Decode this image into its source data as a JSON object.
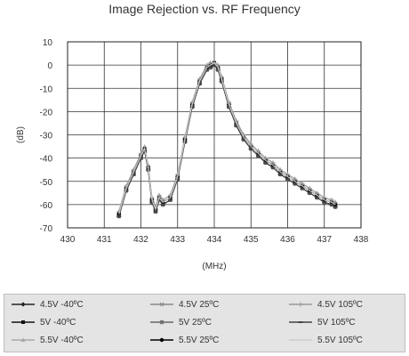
{
  "chart_data": {
    "type": "line",
    "title": "Image Rejection vs. RF Frequency",
    "xlabel": "(MHz)",
    "ylabel": "(dB)",
    "xlim": [
      430,
      438
    ],
    "ylim": [
      -70,
      10
    ],
    "xticks": [
      "430",
      "431",
      "432",
      "433",
      "434",
      "435",
      "436",
      "437",
      "438"
    ],
    "yticks": [
      "10",
      "0",
      "-10",
      "-20",
      "-30",
      "-40",
      "-50",
      "-60",
      "-70"
    ],
    "grid": true,
    "legend_position": "bottom",
    "x": [
      431.4,
      431.6,
      431.8,
      432.0,
      432.1,
      432.2,
      432.3,
      432.4,
      432.5,
      432.6,
      432.8,
      433.0,
      433.2,
      433.4,
      433.6,
      433.8,
      433.9,
      434.0,
      434.1,
      434.2,
      434.4,
      434.6,
      434.8,
      435.0,
      435.2,
      435.4,
      435.6,
      435.8,
      436.0,
      436.2,
      436.4,
      436.6,
      436.8,
      437.0,
      437.2,
      437.3
    ],
    "series": [
      {
        "name": "4.5V -40ºC",
        "color": "#222222",
        "marker": "diamond",
        "values": [
          -64,
          -53,
          -46,
          -39,
          -36,
          -44,
          -58,
          -62,
          -57,
          -59,
          -57,
          -48,
          -32,
          -17,
          -7,
          -1,
          0,
          1,
          -1,
          -6,
          -17,
          -25,
          -31,
          -35,
          -38,
          -41,
          -43,
          -46,
          -48,
          -50,
          -52,
          -54,
          -56,
          -58,
          -59,
          -60
        ]
      },
      {
        "name": "5V -40ºC",
        "color": "#111111",
        "marker": "square",
        "values": [
          -65,
          -54,
          -47,
          -40,
          -37,
          -45,
          -59,
          -63,
          -58,
          -60,
          -58,
          -49,
          -33,
          -18,
          -8,
          -2,
          -1,
          0,
          -2,
          -7,
          -18,
          -26,
          -32,
          -36,
          -39,
          -42,
          -44,
          -47,
          -49,
          -51,
          -53,
          -55,
          -57,
          -59,
          -60,
          -61
        ]
      },
      {
        "name": "5.5V -40ºC",
        "color": "#aaaaaa",
        "marker": "triangle",
        "values": [
          -63,
          -52,
          -45,
          -38,
          -35,
          -43,
          -57,
          -61,
          -56,
          -58,
          -56,
          -47,
          -31,
          -16,
          -6,
          0,
          1,
          1,
          0,
          -5,
          -16,
          -24,
          -30,
          -34,
          -37,
          -40,
          -42,
          -45,
          -47,
          -49,
          -51,
          -53,
          -55,
          -57,
          -58,
          -59
        ]
      },
      {
        "name": "4.5V 25ºC",
        "color": "#888888",
        "marker": "x",
        "values": [
          -64,
          -53,
          -46,
          -39,
          -36,
          -44,
          -58,
          -62,
          -57,
          -59,
          -57,
          -48,
          -32,
          -17,
          -7,
          -1,
          0,
          1,
          -1,
          -6,
          -17,
          -25,
          -31,
          -35,
          -38,
          -41,
          -43,
          -46,
          -48,
          -50,
          -52,
          -54,
          -56,
          -58,
          -59,
          -60
        ]
      },
      {
        "name": "5V 25ºC",
        "color": "#666666",
        "marker": "star",
        "values": [
          -65,
          -54,
          -47,
          -40,
          -37,
          -45,
          -59,
          -63,
          -58,
          -60,
          -58,
          -49,
          -33,
          -18,
          -8,
          -2,
          -1,
          0,
          -2,
          -7,
          -18,
          -26,
          -32,
          -36,
          -39,
          -42,
          -44,
          -47,
          -49,
          -51,
          -53,
          -55,
          -57,
          -59,
          -60,
          -61
        ]
      },
      {
        "name": "5.5V 25ºC",
        "color": "#000000",
        "marker": "circle",
        "values": [
          -64,
          -53,
          -46,
          -39,
          -36,
          -44,
          -58,
          -62,
          -57,
          -59,
          -57,
          -48,
          -32,
          -17,
          -7,
          -1,
          0,
          1,
          -1,
          -6,
          -17,
          -25,
          -31,
          -35,
          -38,
          -41,
          -43,
          -46,
          -48,
          -50,
          -52,
          -54,
          -56,
          -58,
          -59,
          -60
        ]
      },
      {
        "name": "4.5V 105ºC",
        "color": "#999999",
        "marker": "plus",
        "values": [
          -63,
          -52,
          -45,
          -38,
          -36,
          -44,
          -57,
          -61,
          -56,
          -58,
          -56,
          -47,
          -31,
          -16,
          -6,
          0,
          1,
          1,
          0,
          -5,
          -16,
          -24,
          -30,
          -34,
          -37,
          -40,
          -42,
          -45,
          -47,
          -49,
          -51,
          -53,
          -55,
          -57,
          -58,
          -59
        ]
      },
      {
        "name": "5V 105ºC",
        "color": "#444444",
        "marker": "dash",
        "values": [
          -65,
          -54,
          -47,
          -40,
          -37,
          -45,
          -59,
          -63,
          -58,
          -60,
          -58,
          -49,
          -33,
          -18,
          -8,
          -2,
          -1,
          0,
          -2,
          -7,
          -18,
          -26,
          -32,
          -36,
          -39,
          -42,
          -44,
          -47,
          -49,
          -51,
          -53,
          -55,
          -57,
          -59,
          -60,
          -61
        ]
      },
      {
        "name": "5.5V 105ºC",
        "color": "#cccccc",
        "marker": "none",
        "values": [
          -64,
          -53,
          -46,
          -39,
          -36,
          -44,
          -58,
          -62,
          -57,
          -59,
          -57,
          -48,
          -32,
          -17,
          -7,
          -1,
          0,
          1,
          -1,
          -6,
          -17,
          -25,
          -31,
          -35,
          -38,
          -41,
          -43,
          -46,
          -48,
          -50,
          -52,
          -54,
          -56,
          -58,
          -59,
          -60
        ]
      }
    ]
  }
}
